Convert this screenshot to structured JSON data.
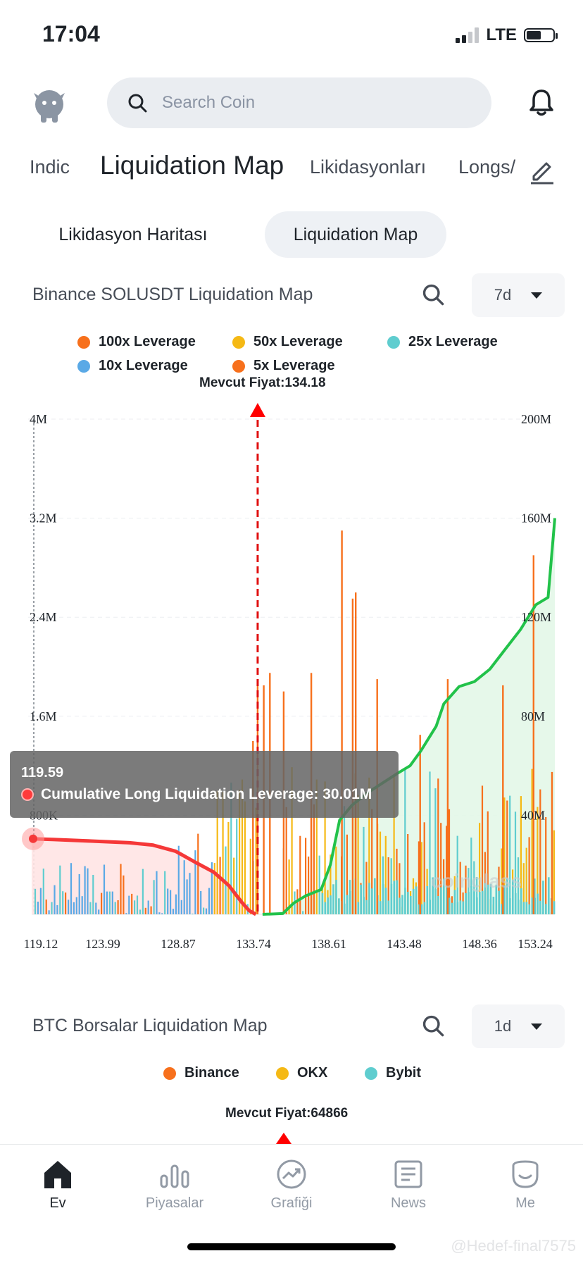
{
  "status": {
    "time": "17:04",
    "network": "LTE"
  },
  "header": {
    "search_placeholder": "Search Coin"
  },
  "top_tabs": [
    {
      "label": "Indic"
    },
    {
      "label": "Liquidation Map",
      "active": true
    },
    {
      "label": "Likidasyonları"
    },
    {
      "label": "Longs/"
    }
  ],
  "segments": [
    {
      "label": "Likidasyon Haritası"
    },
    {
      "label": "Liquidation Map",
      "active": true
    }
  ],
  "chart1": {
    "title": "Binance SOLUSDT Liquidation Map",
    "period": "7d",
    "legend": [
      {
        "label": "100x Leverage",
        "color": "#f7701c"
      },
      {
        "label": "50x Leverage",
        "color": "#f5b915"
      },
      {
        "label": "25x Leverage",
        "color": "#5fcdcf"
      },
      {
        "label": "10x Leverage",
        "color": "#5aa9e6"
      },
      {
        "label": "5x Leverage",
        "color": "#f7701c"
      }
    ],
    "current_price_label": "Mevcut Fiyat:134.18",
    "tooltip": {
      "price": "119.59",
      "text": "Cumulative Long Liquidation Leverage: 30.01M"
    },
    "watermark": "coinglass"
  },
  "chart_data": {
    "type": "bar",
    "title": "Binance SOLUSDT Liquidation Map",
    "x_ticks": [
      "119.12",
      "123.99",
      "128.87",
      "133.74",
      "138.61",
      "143.48",
      "148.36",
      "153.24"
    ],
    "xlim": [
      119.12,
      153.24
    ],
    "y_left_ticks": [
      "800K",
      "1.6M",
      "2.4M",
      "3.2M",
      "4M"
    ],
    "y_right_ticks": [
      "40M",
      "80M",
      "120M",
      "160M",
      "200M"
    ],
    "ylim_left": [
      0,
      4000000
    ],
    "ylim_right": [
      0,
      200000000
    ],
    "current_price": 134.18,
    "series": [
      {
        "name": "100x Leverage",
        "color": "#f7701c"
      },
      {
        "name": "50x Leverage",
        "color": "#f5b915"
      },
      {
        "name": "25x Leverage",
        "color": "#5fcdcf"
      },
      {
        "name": "10x Leverage",
        "color": "#5aa9e6"
      },
      {
        "name": "5x Leverage",
        "color": "#f7701c"
      }
    ],
    "spikes": [
      {
        "x": 133.5,
        "y": 1400000
      },
      {
        "x": 133.8,
        "y": 1900000
      },
      {
        "x": 134.2,
        "y": 1850000
      },
      {
        "x": 134.6,
        "y": 1950000
      },
      {
        "x": 135.5,
        "y": 1800000
      },
      {
        "x": 137.3,
        "y": 1950000
      },
      {
        "x": 139.3,
        "y": 3100000
      },
      {
        "x": 140.0,
        "y": 2550000
      },
      {
        "x": 140.2,
        "y": 2600000
      },
      {
        "x": 141.6,
        "y": 1900000
      },
      {
        "x": 144.4,
        "y": 1450000
      },
      {
        "x": 146.2,
        "y": 1900000
      },
      {
        "x": 149.8,
        "y": 1850000
      },
      {
        "x": 151.8,
        "y": 2900000
      },
      {
        "x": 153.0,
        "y": 1150000
      }
    ],
    "cumulative_long": [
      [
        119.12,
        30.5
      ],
      [
        120.5,
        30.2
      ],
      [
        123.0,
        29.6
      ],
      [
        125.5,
        28.9
      ],
      [
        127.0,
        28.0
      ],
      [
        128.5,
        25.5
      ],
      [
        129.8,
        21.0
      ],
      [
        131.0,
        17.0
      ],
      [
        132.0,
        11.5
      ],
      [
        132.8,
        5.0
      ],
      [
        133.3,
        1.5
      ],
      [
        133.74,
        0
      ]
    ],
    "cumulative_short": [
      [
        134.18,
        0
      ],
      [
        135.5,
        0.3
      ],
      [
        136.2,
        4.5
      ],
      [
        137.0,
        7.5
      ],
      [
        138.0,
        10.0
      ],
      [
        138.6,
        20.0
      ],
      [
        139.2,
        38.0
      ],
      [
        140.0,
        44.0
      ],
      [
        141.0,
        49.0
      ],
      [
        142.0,
        53.0
      ],
      [
        143.0,
        57.0
      ],
      [
        143.8,
        60.0
      ],
      [
        144.5,
        66.0
      ],
      [
        145.0,
        71.0
      ],
      [
        145.5,
        76.0
      ],
      [
        146.0,
        85.0
      ],
      [
        147.0,
        92.0
      ],
      [
        148.0,
        94.0
      ],
      [
        149.0,
        99.0
      ],
      [
        150.0,
        107.0
      ],
      [
        151.0,
        115.0
      ],
      [
        152.0,
        125.0
      ],
      [
        152.8,
        128.0
      ],
      [
        153.24,
        160.0
      ]
    ]
  },
  "chart2": {
    "title": "BTC Borsalar  Liquidation Map",
    "period": "1d",
    "legend": [
      {
        "label": "Binance",
        "color": "#f7701c"
      },
      {
        "label": "OKX",
        "color": "#f5b915"
      },
      {
        "label": "Bybit",
        "color": "#5fcdcf"
      }
    ],
    "current_price_label": "Mevcut Fiyat:64866"
  },
  "bottom_nav": [
    {
      "label": "Ev",
      "icon": "home-icon",
      "active": true
    },
    {
      "label": "Piyasalar",
      "icon": "markets-icon"
    },
    {
      "label": "Grafiği",
      "icon": "chart-icon"
    },
    {
      "label": "News",
      "icon": "news-icon"
    },
    {
      "label": "Me",
      "icon": "profile-icon"
    }
  ],
  "watermark": "@Hedef-final7575"
}
